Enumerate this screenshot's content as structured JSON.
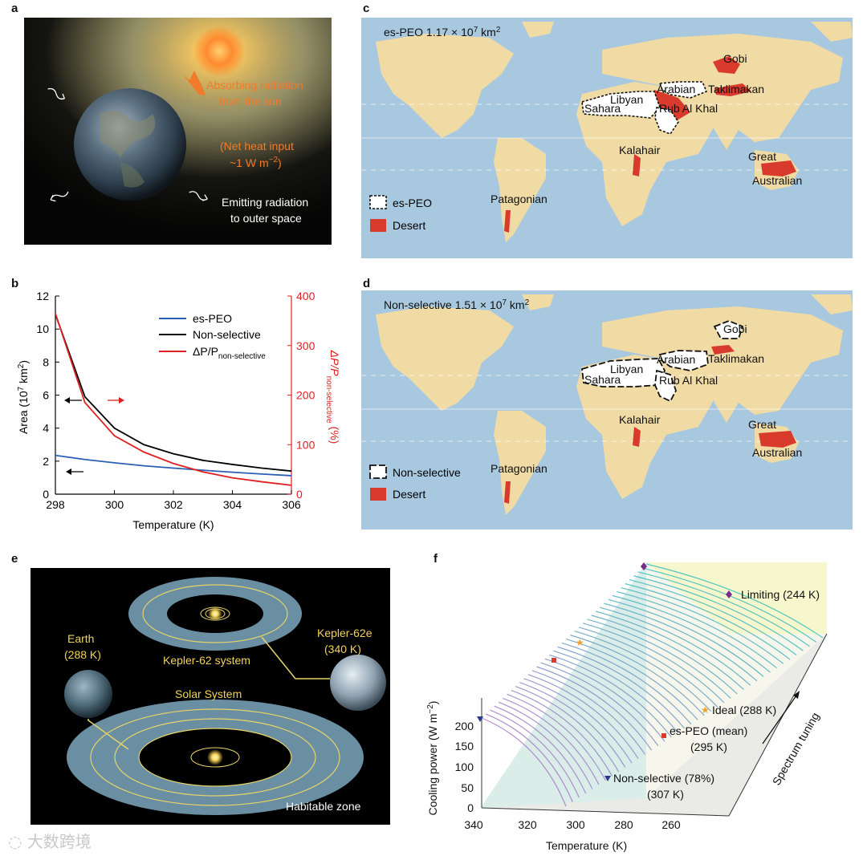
{
  "panels": {
    "a": {
      "letter": "a",
      "absorb_line1": "Absorbing radiation",
      "absorb_line2": "from the sun",
      "net_line1": "(Net heat input",
      "net_line2": "~1 W m",
      "net_exp": "−2",
      "net_close": ")",
      "emit_line1": "Emitting radiation",
      "emit_line2": "to outer space"
    },
    "b": {
      "letter": "b",
      "legend": [
        "es-PEO",
        "Non-selective",
        "ΔP/P"
      ],
      "legend_sub": "non-selective",
      "ylabel_left": "Area (10",
      "ylabel_left_exp1": "7",
      "ylabel_left_mid": " km",
      "ylabel_left_exp2": "2",
      "ylabel_left_close": ")",
      "ylabel_right": "ΔP/P",
      "ylabel_right_sub": "non-selective",
      "ylabel_right_unit": "(%)",
      "xlabel": "Temperature (K)"
    },
    "c": {
      "letter": "c",
      "title": "es-PEO 1.17 × 10",
      "title_exp": "7",
      "title_unit": " km",
      "title_exp2": "2",
      "legend_a": "es-PEO",
      "legend_b": "Desert",
      "regions": [
        "Gobi",
        "Arabian",
        "Taklimakan",
        "Libyan",
        "Sahara",
        "Rub Al Khal",
        "Kalahair",
        "Great",
        "Australian",
        "Patagonian"
      ]
    },
    "d": {
      "letter": "d",
      "title": "Non-selective 1.51 × 10",
      "title_exp": "7",
      "title_unit": " km",
      "title_exp2": "2",
      "legend_a": "Non-selective",
      "legend_b": "Desert",
      "regions": [
        "Gobi",
        "Arabian",
        "Taklimakan",
        "Libyan",
        "Sahara",
        "Rub Al Khal",
        "Kalahair",
        "Great",
        "Australian",
        "Patagonian"
      ]
    },
    "e": {
      "letter": "e",
      "earth": "Earth",
      "earth_temp": "(288 K)",
      "kepler_e": "Kepler-62e",
      "kepler_e_temp": "(340 K)",
      "kepler_system": "Kepler-62 system",
      "solar": "Solar System",
      "habitable": "Habitable zone"
    },
    "f": {
      "letter": "f",
      "ylabel": "Cooling power (W m",
      "ylabel_exp": "−2",
      "ylabel_close": ")",
      "xlabel": "Temperature (K)",
      "spectrum": "Spectrum tuning",
      "limiting": "Limiting (244 K)",
      "ideal": "Ideal (288 K)",
      "espeo_line1": "es-PEO (mean)",
      "espeo_line2": "(295 K)",
      "nonsel_line1": "Non-selective (78%)",
      "nonsel_line2": "(307 K)",
      "x_ticks": [
        "340",
        "320",
        "300",
        "280",
        "260"
      ],
      "y_ticks": [
        "0",
        "50",
        "100",
        "150",
        "200"
      ]
    }
  },
  "watermark": "大数跨境",
  "chart_data": [
    {
      "type": "line",
      "panel": "b",
      "xlabel": "Temperature (K)",
      "ylabel": "Area (10^7 km^2)",
      "y2label": "ΔP/P non-selective (%)",
      "x": [
        298,
        299,
        300,
        301,
        302,
        303,
        304,
        305,
        306
      ],
      "xlim": [
        298,
        306
      ],
      "ylim": [
        0,
        12
      ],
      "y2lim": [
        0,
        400
      ],
      "x_ticks": [
        298,
        300,
        302,
        304,
        306
      ],
      "y_ticks": [
        0,
        2,
        4,
        6,
        8,
        10,
        12
      ],
      "y2_ticks": [
        0,
        100,
        200,
        300,
        400
      ],
      "legend_position": "top-right",
      "series": [
        {
          "name": "es-PEO",
          "axis": "left",
          "color": "#2b5fb5",
          "values": [
            2.35,
            2.1,
            1.9,
            1.72,
            1.58,
            1.45,
            1.33,
            1.22,
            1.12
          ]
        },
        {
          "name": "Non-selective",
          "axis": "left",
          "color": "#000000",
          "values": [
            10.9,
            5.9,
            4.0,
            3.0,
            2.45,
            2.05,
            1.8,
            1.58,
            1.4
          ]
        },
        {
          "name": "ΔP/P non-selective",
          "axis": "right",
          "color": "#e02020",
          "values": [
            365,
            185,
            118,
            85,
            62,
            45,
            33,
            25,
            18
          ]
        }
      ]
    }
  ]
}
